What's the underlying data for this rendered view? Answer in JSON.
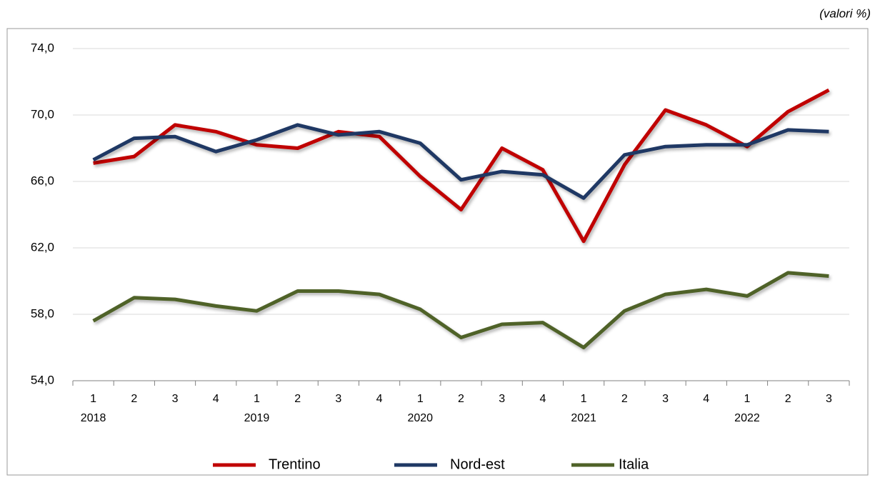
{
  "chart_data": {
    "type": "line",
    "annotation": "(valori %)",
    "categories": [
      "1",
      "2",
      "3",
      "4",
      "1",
      "2",
      "3",
      "4",
      "1",
      "2",
      "3",
      "4",
      "1",
      "2",
      "3",
      "4",
      "1",
      "2",
      "3"
    ],
    "years": [
      "2018",
      null,
      null,
      null,
      "2019",
      null,
      null,
      null,
      "2020",
      null,
      null,
      null,
      "2021",
      null,
      null,
      null,
      "2022",
      null,
      null
    ],
    "series": [
      {
        "name": "Trentino",
        "color": "#c00000",
        "values": [
          67.1,
          67.5,
          69.4,
          69.0,
          68.2,
          68.0,
          69.0,
          68.7,
          66.3,
          64.3,
          68.0,
          66.7,
          62.4,
          67.0,
          70.3,
          69.4,
          68.1,
          70.2,
          71.5
        ]
      },
      {
        "name": "Nord-est",
        "color": "#1f3864",
        "values": [
          67.3,
          68.6,
          68.7,
          67.8,
          68.5,
          69.4,
          68.8,
          69.0,
          68.3,
          66.1,
          66.6,
          66.4,
          65.0,
          67.6,
          68.1,
          68.2,
          68.2,
          69.1,
          69.0
        ]
      },
      {
        "name": "Italia",
        "color": "#4f6228",
        "values": [
          57.6,
          59.0,
          58.9,
          58.5,
          58.2,
          59.4,
          59.4,
          59.2,
          58.3,
          56.6,
          57.4,
          57.5,
          56.0,
          58.2,
          59.2,
          59.5,
          59.1,
          60.5,
          60.3
        ]
      }
    ],
    "ylim": [
      54,
      74
    ],
    "yticks": [
      {
        "value": 54,
        "label": "54,0"
      },
      {
        "value": 58,
        "label": "58,0"
      },
      {
        "value": 62,
        "label": "62,0"
      },
      {
        "value": 66,
        "label": "66,0"
      },
      {
        "value": 70,
        "label": "70,0"
      },
      {
        "value": 74,
        "label": "74,0"
      }
    ],
    "grid": true
  }
}
